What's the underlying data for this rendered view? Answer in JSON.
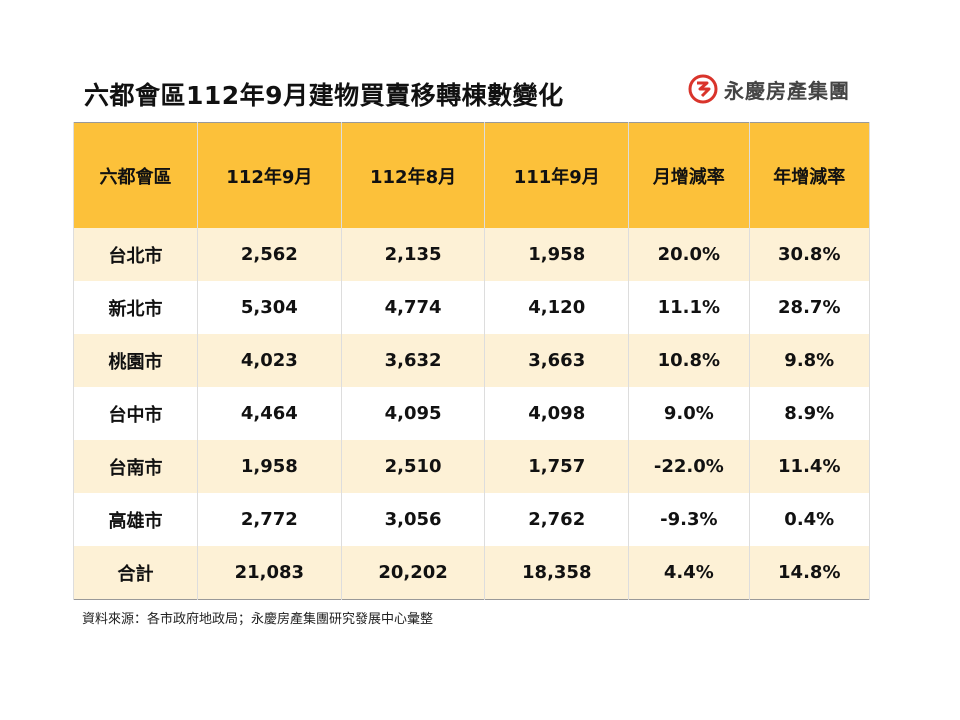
{
  "header": {
    "title": "六都會區112年9月建物買賣移轉棟數變化",
    "logo": "永慶房產集團"
  },
  "table": {
    "columns": [
      "六都會區",
      "112年9月",
      "112年8月",
      "111年9月",
      "月增減率",
      "年增減率"
    ],
    "rows": [
      [
        "台北市",
        "2,562",
        "2,135",
        "1,958",
        "20.0%",
        "30.8%"
      ],
      [
        "新北市",
        "5,304",
        "4,774",
        "4,120",
        "11.1%",
        "28.7%"
      ],
      [
        "桃園市",
        "4,023",
        "3,632",
        "3,663",
        "10.8%",
        "9.8%"
      ],
      [
        "台中市",
        "4,464",
        "4,095",
        "4,098",
        "9.0%",
        "8.9%"
      ],
      [
        "台南市",
        "1,958",
        "2,510",
        "1,757",
        "-22.0%",
        "11.4%"
      ],
      [
        "高雄市",
        "2,772",
        "3,056",
        "2,762",
        "-9.3%",
        "0.4%"
      ],
      [
        "合計",
        "21,083",
        "20,202",
        "18,358",
        "4.4%",
        "14.8%"
      ]
    ]
  },
  "footer": {
    "source": "資料來源：各市政府地政局；永慶房產集團研究發展中心彙整"
  }
}
